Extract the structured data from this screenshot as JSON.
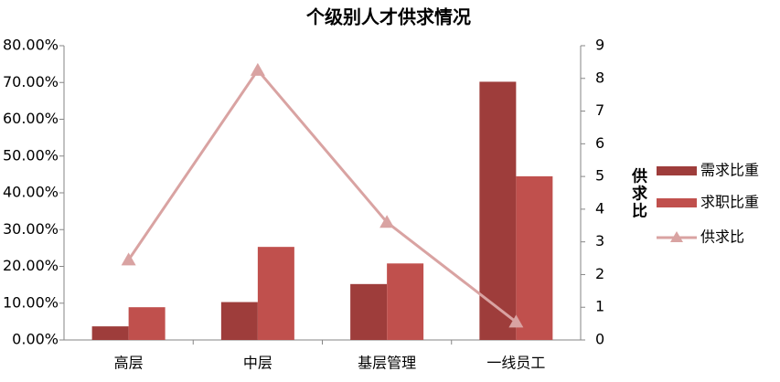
{
  "chart_data": {
    "type": "bar",
    "title": "个级别人才供求情况",
    "categories": [
      "高层",
      "中层",
      "基层管理",
      "一线员工"
    ],
    "series": [
      {
        "name": "需求比重",
        "color": "#9e3d3b",
        "values": [
          3.7,
          10.3,
          15.2,
          70.2
        ]
      },
      {
        "name": "求职比重",
        "color": "#c0504d",
        "values": [
          8.9,
          25.3,
          20.8,
          44.5
        ]
      },
      {
        "name": "供求比",
        "color": "#d9a3a2",
        "type": "line",
        "axis": "y2",
        "values": [
          2.45,
          8.25,
          3.6,
          0.55
        ]
      }
    ],
    "ylim": [
      0,
      80
    ],
    "yticks": [
      {
        "value": 0,
        "label": "0.00%"
      },
      {
        "value": 10,
        "label": "10.00%"
      },
      {
        "value": 20,
        "label": "20.00%"
      },
      {
        "value": 30,
        "label": "30.00%"
      },
      {
        "value": 40,
        "label": "40.00%"
      },
      {
        "value": 50,
        "label": "50.00%"
      },
      {
        "value": 60,
        "label": "60.00%"
      },
      {
        "value": 70,
        "label": "70.00%"
      },
      {
        "value": 80,
        "label": "80.00%"
      }
    ],
    "y2lim": [
      0,
      9
    ],
    "y2ticks": [
      0,
      1,
      2,
      3,
      4,
      5,
      6,
      7,
      8,
      9
    ],
    "y2label": "供求比",
    "legend": "right",
    "grid": false
  }
}
